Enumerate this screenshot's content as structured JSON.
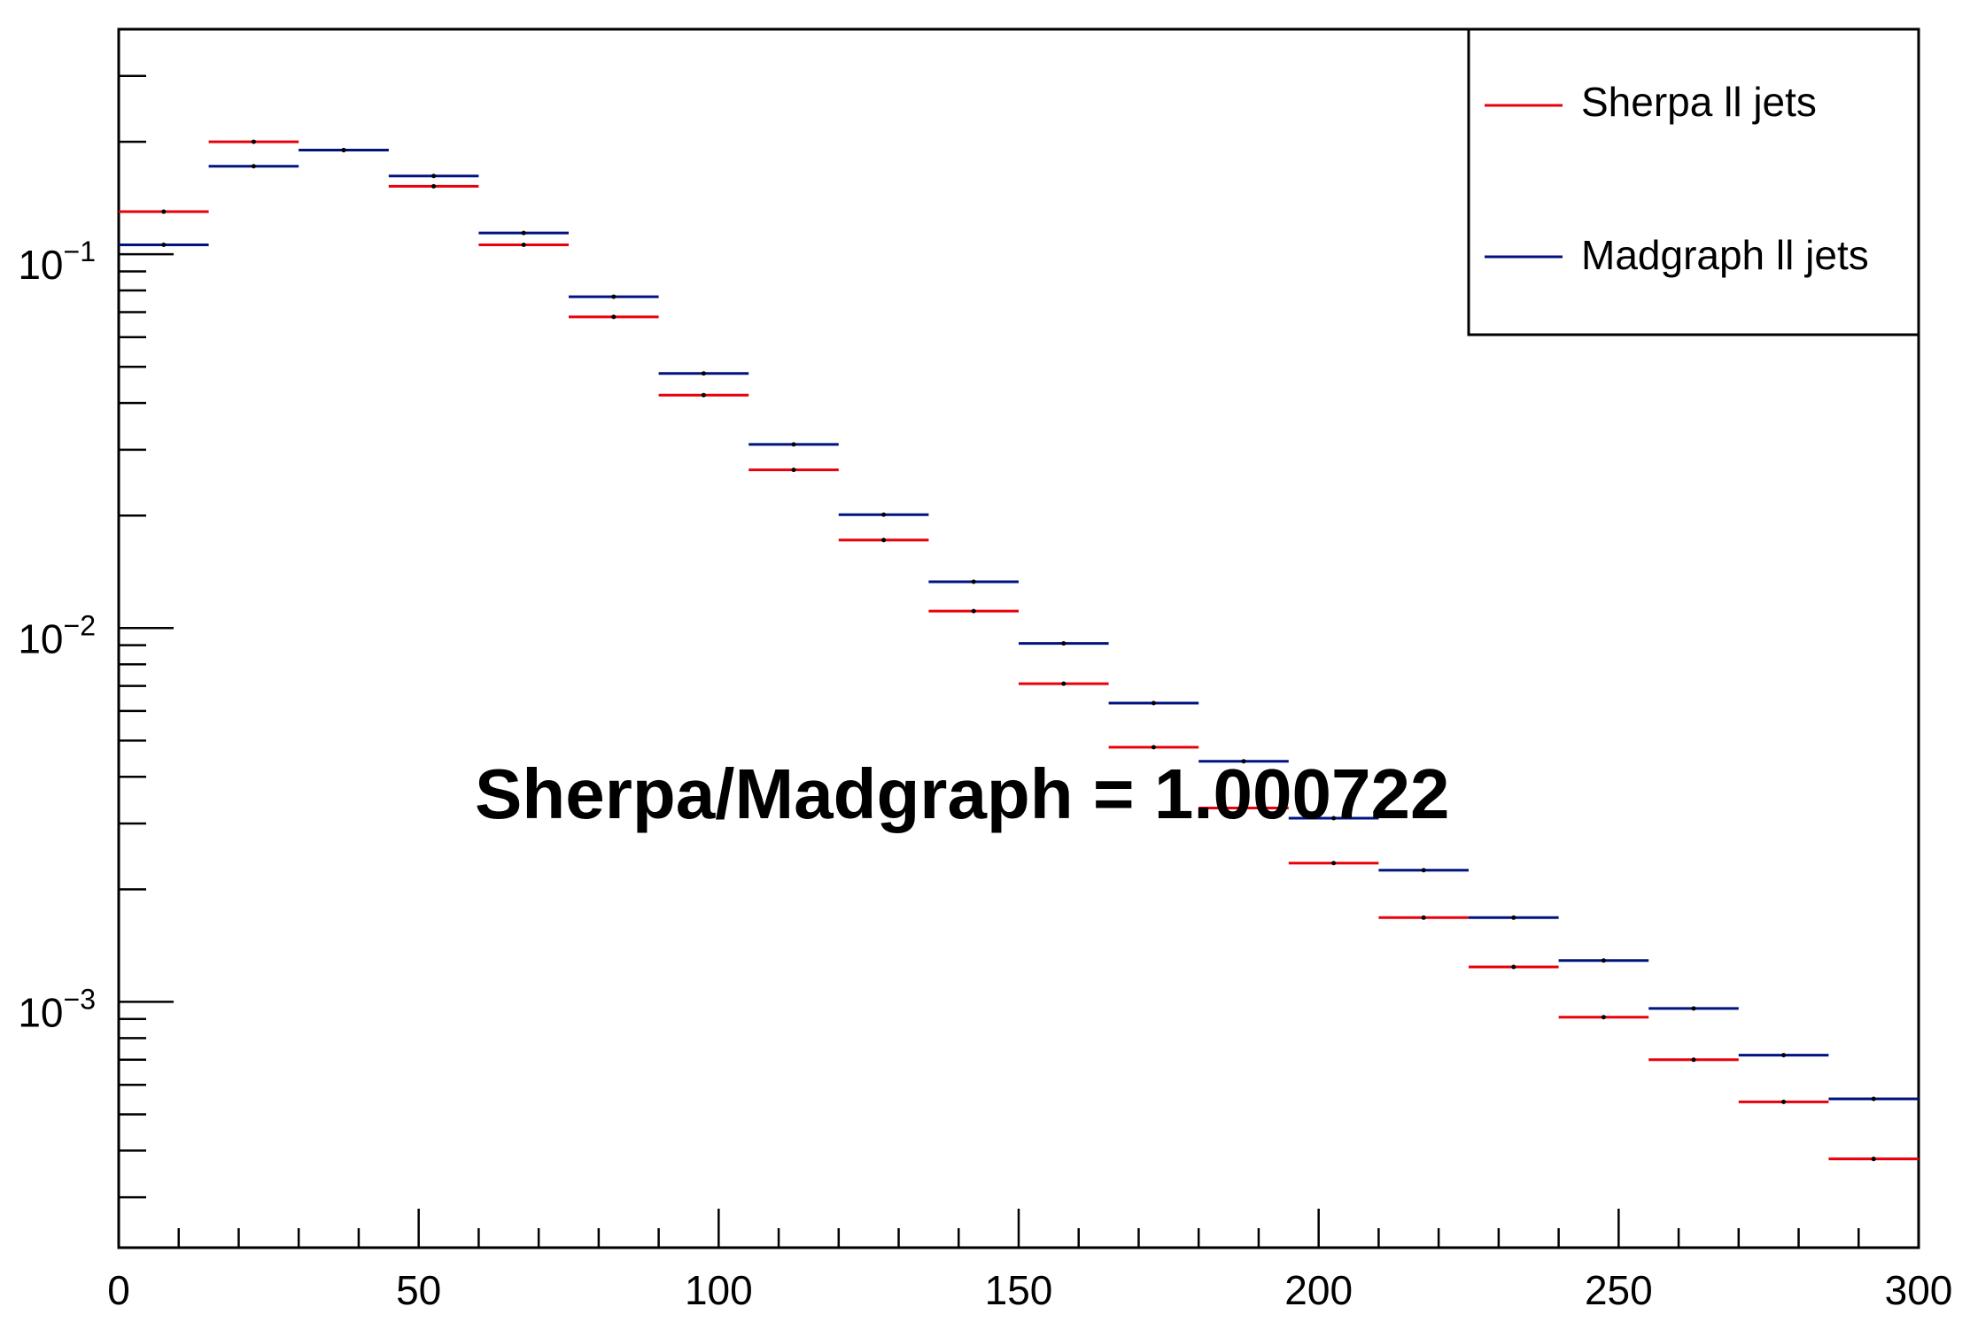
{
  "chart_data": {
    "type": "histogram",
    "title": "",
    "xlabel": "",
    "ylabel": "",
    "xlim": [
      0,
      300
    ],
    "ylim": [
      0.00022,
      0.4
    ],
    "yscale": "log",
    "bin_edges": [
      0,
      15,
      30,
      45,
      60,
      75,
      90,
      105,
      120,
      135,
      150,
      165,
      180,
      195,
      210,
      225,
      240,
      255,
      270,
      285,
      300
    ],
    "x_ticks": [
      "0",
      "50",
      "100",
      "150",
      "200",
      "250",
      "300"
    ],
    "y_ticks": [
      {
        "base": "10",
        "exp": "−1"
      },
      {
        "base": "10",
        "exp": "−2"
      },
      {
        "base": "10",
        "exp": "−3"
      }
    ],
    "series": [
      {
        "name": "Sherpa ll jets",
        "color": "#e8000b",
        "values": [
          0.13,
          0.2,
          0.19,
          0.152,
          0.106,
          0.068,
          0.042,
          0.0265,
          0.0172,
          0.0111,
          0.0071,
          0.0048,
          0.0033,
          0.00235,
          0.00168,
          0.00124,
          0.00091,
          0.0007,
          0.00054,
          0.00038
        ]
      },
      {
        "name": "Madgraph ll jets",
        "color": "#00137f",
        "values": [
          0.106,
          0.172,
          0.19,
          0.162,
          0.114,
          0.077,
          0.048,
          0.031,
          0.0201,
          0.0133,
          0.0091,
          0.0063,
          0.0044,
          0.0031,
          0.00225,
          0.00168,
          0.00129,
          0.00096,
          0.00072,
          0.00055
        ]
      }
    ],
    "legend": "top-right",
    "annotation": "Sherpa/Madgraph = 1.000722"
  }
}
